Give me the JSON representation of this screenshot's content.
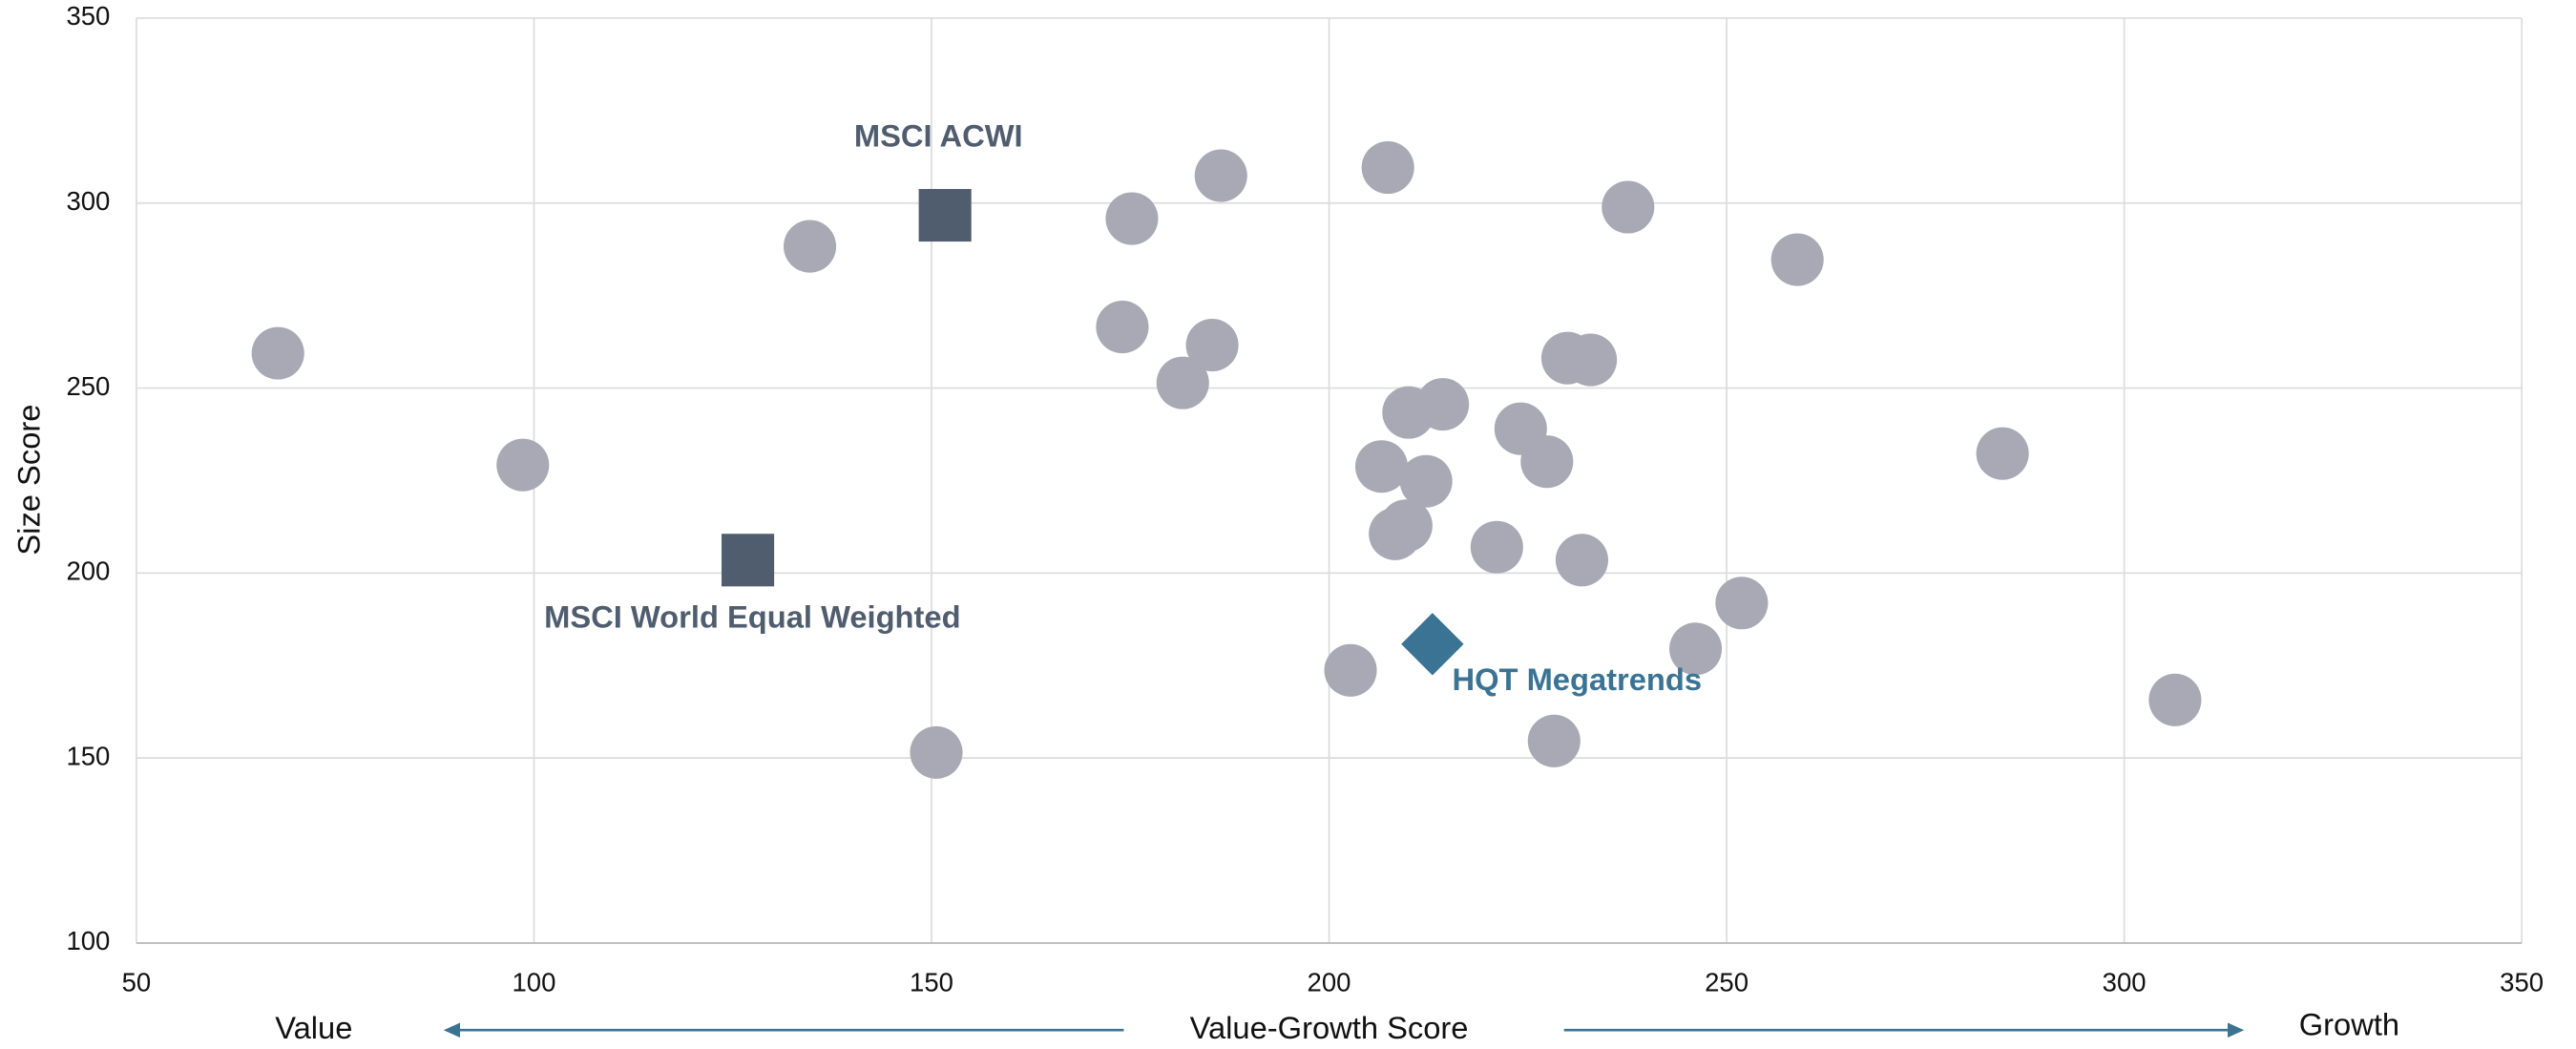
{
  "chart_data": {
    "type": "scatter",
    "x_label": "Value-Growth Score",
    "y_label": "Size Score",
    "x_left_label": "Value",
    "x_right_label": "Growth",
    "xlim": [
      50,
      350
    ],
    "xticks": [
      50,
      100,
      150,
      200,
      250,
      300,
      350
    ],
    "ylim": [
      100,
      350
    ],
    "yticks": [
      100,
      150,
      200,
      250,
      300,
      350
    ],
    "grid": true,
    "series": [
      {
        "color": "#a8a9b4",
        "marker": "circle",
        "x": [
          67.8,
          98.6,
          134.7,
          150.6,
          174.0,
          175.2,
          186.4,
          181.6,
          185.3,
          207.4,
          237.6,
          258.9,
          284.7,
          306.4,
          230.0,
          232.9,
          214.3,
          210.0,
          224.1,
          227.4,
          206.6,
          212.2,
          209.7,
          208.3,
          221.1,
          231.8,
          251.9,
          246.1,
          202.7,
          228.3
        ],
        "y": [
          259.4,
          229.2,
          288.3,
          151.5,
          266.5,
          295.8,
          307.4,
          251.4,
          261.6,
          309.6,
          298.9,
          284.7,
          232.3,
          165.7,
          258.1,
          257.6,
          245.6,
          243.4,
          239.0,
          230.1,
          228.8,
          224.8,
          212.8,
          210.6,
          207.0,
          203.5,
          191.9,
          179.5,
          173.7,
          154.6
        ]
      },
      {
        "name": "MSCI ACWI",
        "color": "#4f5d6e",
        "marker": "square",
        "x": [
          151.7
        ],
        "y": [
          296.7
        ]
      },
      {
        "name": "MSCI World Equal Weighted",
        "color": "#4f5d6e",
        "marker": "square",
        "x": [
          126.9
        ],
        "y": [
          203.5
        ]
      },
      {
        "name": "HQT Megatrends",
        "color": "#3a7394",
        "marker": "diamond",
        "x": [
          213.0
        ],
        "y": [
          180.8
        ]
      }
    ]
  }
}
